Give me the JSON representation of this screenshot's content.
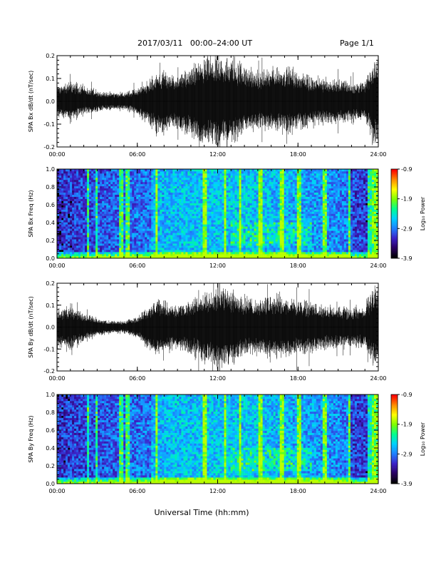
{
  "header": {
    "title": "2017/03/11   00:00–24:00 UT",
    "page": "Page 1/1"
  },
  "xlabel": "Universal Time (hh:mm)",
  "colorbar": {
    "label": "Log₁₀ Power",
    "range": [
      -3.9,
      -0.9
    ],
    "ticks": [
      "-0.9",
      "-1.9",
      "-2.9",
      "-3.9"
    ],
    "colors": [
      "#000000",
      "#2a0060",
      "#3c22c8",
      "#1f7fff",
      "#00d0ff",
      "#00ff90",
      "#7cff00",
      "#ffff00",
      "#ff8c00",
      "#ff0000"
    ]
  },
  "chart_data": [
    {
      "type": "line",
      "ylabel": "SPA Bx dB/dt (nT/sec)",
      "xlim": [
        0,
        24
      ],
      "xticks": [
        "00:00",
        "06:00",
        "12:00",
        "18:00",
        "24:00"
      ],
      "ylim": [
        -0.2,
        0.2
      ],
      "yticks": [
        "0.2",
        "0.1",
        "0.0",
        "-0.1",
        "-0.2"
      ],
      "envelope": {
        "hour": [
          0,
          1,
          2,
          3,
          4,
          5,
          6,
          6.8,
          7.5,
          8,
          9,
          10,
          11,
          12,
          13,
          14,
          15,
          16,
          17,
          18,
          19,
          20,
          21,
          22,
          23,
          23.7,
          24
        ],
        "upper": [
          0.07,
          0.09,
          0.07,
          0.05,
          0.04,
          0.04,
          0.06,
          0.1,
          0.13,
          0.13,
          0.12,
          0.16,
          0.2,
          0.2,
          0.2,
          0.17,
          0.13,
          0.15,
          0.16,
          0.13,
          0.12,
          0.1,
          0.1,
          0.09,
          0.09,
          0.2,
          0.2
        ],
        "lower": [
          -0.07,
          -0.09,
          -0.06,
          -0.05,
          -0.04,
          -0.04,
          -0.06,
          -0.11,
          -0.15,
          -0.15,
          -0.13,
          -0.17,
          -0.2,
          -0.2,
          -0.2,
          -0.14,
          -0.12,
          -0.13,
          -0.15,
          -0.13,
          -0.12,
          -0.1,
          -0.1,
          -0.09,
          -0.09,
          -0.2,
          -0.2
        ]
      }
    },
    {
      "type": "heatmap",
      "ylabel": "SPA Bx Freq (Hz)",
      "xlim": [
        0,
        24
      ],
      "xticks": [
        "00:00",
        "06:00",
        "12:00",
        "18:00",
        "24:00"
      ],
      "ylim": [
        0,
        1
      ],
      "yticks": [
        "1.0",
        "0.8",
        "0.6",
        "0.4",
        "0.2",
        "0.0"
      ],
      "zlim": [
        -3.9,
        -0.9
      ]
    },
    {
      "type": "line",
      "ylabel": "SPA By dB/dt (nT/sec)",
      "xlim": [
        0,
        24
      ],
      "xticks": [
        "00:00",
        "06:00",
        "12:00",
        "18:00",
        "24:00"
      ],
      "ylim": [
        -0.2,
        0.2
      ],
      "yticks": [
        "0.2",
        "0.1",
        "0.0",
        "-0.1",
        "-0.2"
      ],
      "envelope": {
        "hour": [
          0,
          1,
          2,
          3,
          4,
          5,
          6,
          6.8,
          7.5,
          8,
          9,
          10,
          11,
          12,
          13,
          14,
          15,
          16,
          17,
          18,
          19,
          20,
          21,
          22,
          23,
          23.7,
          24
        ],
        "upper": [
          0.08,
          0.1,
          0.07,
          0.04,
          0.03,
          0.03,
          0.05,
          0.1,
          0.14,
          0.12,
          0.11,
          0.13,
          0.16,
          0.2,
          0.18,
          0.14,
          0.14,
          0.16,
          0.15,
          0.13,
          0.12,
          0.1,
          0.1,
          0.09,
          0.1,
          0.2,
          0.2
        ],
        "lower": [
          -0.09,
          -0.11,
          -0.07,
          -0.04,
          -0.03,
          -0.03,
          -0.05,
          -0.11,
          -0.14,
          -0.12,
          -0.11,
          -0.13,
          -0.17,
          -0.2,
          -0.18,
          -0.14,
          -0.13,
          -0.15,
          -0.15,
          -0.13,
          -0.12,
          -0.1,
          -0.1,
          -0.09,
          -0.1,
          -0.2,
          -0.2
        ]
      }
    },
    {
      "type": "heatmap",
      "ylabel": "SPA By Freq (Hz)",
      "xlim": [
        0,
        24
      ],
      "xticks": [
        "00:00",
        "06:00",
        "12:00",
        "18:00",
        "24:00"
      ],
      "ylim": [
        0,
        1
      ],
      "yticks": [
        "1.0",
        "0.8",
        "0.6",
        "0.4",
        "0.2",
        "0.0"
      ],
      "zlim": [
        -3.9,
        -0.9
      ]
    }
  ]
}
